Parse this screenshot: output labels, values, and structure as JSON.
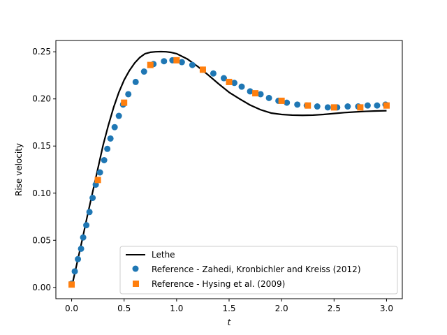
{
  "chart_data": {
    "type": "line",
    "title": "",
    "xlabel": "t",
    "ylabel": "Rise velocity",
    "xlim": [
      -0.15,
      3.15
    ],
    "ylim": [
      -0.012,
      0.262
    ],
    "xticks": [
      0.0,
      0.5,
      1.0,
      1.5,
      2.0,
      2.5,
      3.0
    ],
    "xtick_labels": [
      "0.0",
      "0.5",
      "1.0",
      "1.5",
      "2.0",
      "2.5",
      "3.0"
    ],
    "yticks": [
      0.0,
      0.05,
      0.1,
      0.15,
      0.2,
      0.25
    ],
    "ytick_labels": [
      "0.00",
      "0.05",
      "0.10",
      "0.15",
      "0.20",
      "0.25"
    ],
    "grid": false,
    "legend_position": "lower-right",
    "series": [
      {
        "name": "Lethe",
        "kind": "line",
        "color": "#000000",
        "x": [
          0.0,
          0.05,
          0.1,
          0.15,
          0.2,
          0.25,
          0.3,
          0.35,
          0.4,
          0.45,
          0.5,
          0.55,
          0.6,
          0.65,
          0.7,
          0.75,
          0.8,
          0.85,
          0.9,
          0.95,
          1.0,
          1.1,
          1.2,
          1.3,
          1.4,
          1.5,
          1.6,
          1.7,
          1.8,
          1.9,
          2.0,
          2.1,
          2.2,
          2.3,
          2.4,
          2.5,
          2.6,
          2.7,
          2.8,
          2.9,
          3.0
        ],
        "y": [
          0.0,
          0.025,
          0.05,
          0.076,
          0.101,
          0.126,
          0.151,
          0.172,
          0.191,
          0.207,
          0.22,
          0.23,
          0.238,
          0.244,
          0.248,
          0.2495,
          0.25,
          0.2502,
          0.25,
          0.2493,
          0.248,
          0.2425,
          0.2345,
          0.2255,
          0.216,
          0.207,
          0.2,
          0.1935,
          0.1885,
          0.185,
          0.1835,
          0.1828,
          0.1826,
          0.1828,
          0.1835,
          0.1845,
          0.1855,
          0.1862,
          0.1868,
          0.1872,
          0.1875
        ]
      },
      {
        "name": "Reference - Zahedi, Kronbichler and Kreiss (2012)",
        "kind": "scatter",
        "marker": "circle",
        "color": "#1f77b4",
        "x": [
          0.0,
          0.03,
          0.06,
          0.09,
          0.11,
          0.14,
          0.17,
          0.2,
          0.23,
          0.27,
          0.31,
          0.34,
          0.37,
          0.41,
          0.45,
          0.49,
          0.54,
          0.61,
          0.69,
          0.78,
          0.88,
          0.96,
          1.05,
          1.15,
          1.25,
          1.35,
          1.45,
          1.55,
          1.62,
          1.7,
          1.8,
          1.88,
          1.97,
          2.05,
          2.15,
          2.24,
          2.34,
          2.44,
          2.53,
          2.63,
          2.73,
          2.82,
          2.91,
          2.99
        ],
        "y": [
          0.004,
          0.017,
          0.03,
          0.041,
          0.053,
          0.066,
          0.08,
          0.095,
          0.109,
          0.122,
          0.135,
          0.147,
          0.158,
          0.17,
          0.182,
          0.194,
          0.205,
          0.218,
          0.229,
          0.237,
          0.24,
          0.241,
          0.239,
          0.236,
          0.231,
          0.227,
          0.222,
          0.217,
          0.213,
          0.208,
          0.205,
          0.201,
          0.198,
          0.196,
          0.194,
          0.193,
          0.192,
          0.191,
          0.191,
          0.192,
          0.192,
          0.193,
          0.193,
          0.194
        ]
      },
      {
        "name": "Reference - Hysing et al. (2009)",
        "kind": "scatter",
        "marker": "square",
        "color": "#ff7f0e",
        "x": [
          0.0,
          0.25,
          0.5,
          0.75,
          1.0,
          1.25,
          1.5,
          1.75,
          2.0,
          2.25,
          2.5,
          2.75,
          3.0
        ],
        "y": [
          0.003,
          0.114,
          0.196,
          0.236,
          0.241,
          0.231,
          0.218,
          0.206,
          0.198,
          0.193,
          0.191,
          0.191,
          0.193
        ]
      }
    ]
  }
}
